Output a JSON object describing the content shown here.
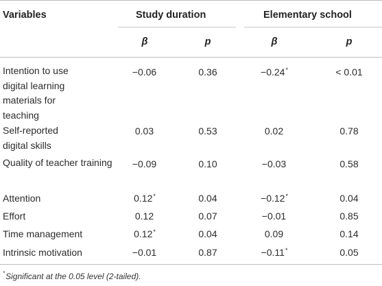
{
  "table": {
    "header": {
      "variables": "Variables",
      "group1": "Study duration",
      "group2": "Elementary school",
      "beta": "β",
      "p": "p"
    },
    "rows": [
      {
        "label": "Intention to use digital learning materials for teaching",
        "sd_beta": "−0.06",
        "sd_beta_sig": "",
        "sd_p": "0.36",
        "es_beta": "−0.24",
        "es_beta_sig": "*",
        "es_p": "< 0.01"
      },
      {
        "label": "Self-reported digital skills",
        "sd_beta": "0.03",
        "sd_beta_sig": "",
        "sd_p": "0.53",
        "es_beta": "0.02",
        "es_beta_sig": "",
        "es_p": "0.78"
      },
      {
        "label": "Quality of teacher training",
        "sd_beta": "−0.09",
        "sd_beta_sig": "",
        "sd_p": "0.10",
        "es_beta": "−0.03",
        "es_beta_sig": "",
        "es_p": "0.58"
      },
      {
        "label": "Attention",
        "sd_beta": "0.12",
        "sd_beta_sig": "*",
        "sd_p": "0.04",
        "es_beta": "−0.12",
        "es_beta_sig": "*",
        "es_p": "0.04"
      },
      {
        "label": "Effort",
        "sd_beta": "0.12",
        "sd_beta_sig": "",
        "sd_p": "0.07",
        "es_beta": "−0.01",
        "es_beta_sig": "",
        "es_p": "0.85"
      },
      {
        "label": "Time management",
        "sd_beta": "0.12",
        "sd_beta_sig": "*",
        "sd_p": "0.04",
        "es_beta": "0.09",
        "es_beta_sig": "",
        "es_p": "0.14"
      },
      {
        "label": "Intrinsic motivation",
        "sd_beta": "−0.01",
        "sd_beta_sig": "",
        "sd_p": "0.87",
        "es_beta": "−0.11",
        "es_beta_sig": "*",
        "es_p": "0.05"
      }
    ],
    "footnote": {
      "marker": "*",
      "text": "Significant at the 0.05 level (2-tailed)."
    }
  }
}
